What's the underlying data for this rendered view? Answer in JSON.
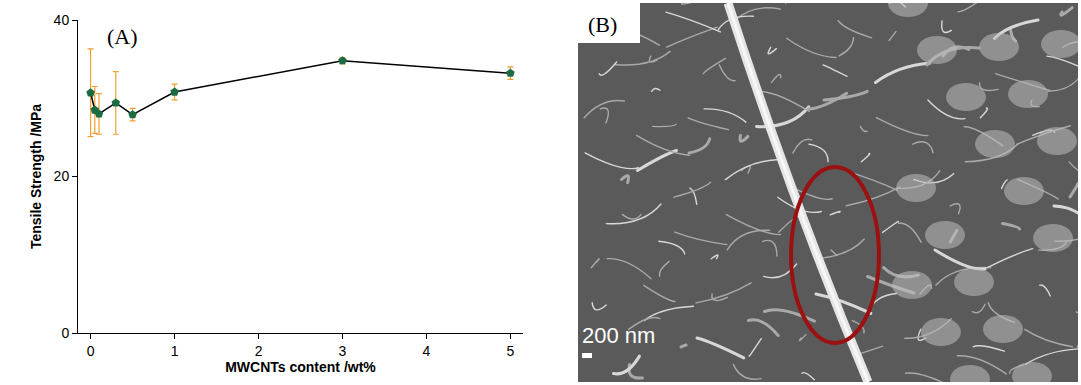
{
  "chart_data": {
    "type": "line",
    "annotations": [
      "(A)"
    ],
    "x_label": "MWCNTs content /wt%",
    "y_label": "Tensile Strength /MPa",
    "x": [
      0,
      0.05,
      0.1,
      0.3,
      0.5,
      1,
      3,
      5
    ],
    "series": [
      {
        "name": "Tensile Strength",
        "color": "#1d6b45",
        "marker": "pentagon",
        "line_style": "solid",
        "values": [
          30.7,
          28.5,
          28.0,
          29.4,
          27.9,
          30.8,
          34.8,
          33.2
        ],
        "errors": [
          5.6,
          3.0,
          2.6,
          4.0,
          0.8,
          1.0,
          0.4,
          0.8
        ]
      }
    ],
    "xlim": [
      -0.15,
      5.15
    ],
    "xticks": [
      0,
      1,
      2,
      3,
      4,
      5
    ],
    "ylim": [
      0,
      40
    ],
    "yticks": [
      0,
      20,
      40
    ],
    "grid": false
  },
  "image_panel": {
    "label": "(B)",
    "scale_bar": "200 nm"
  }
}
